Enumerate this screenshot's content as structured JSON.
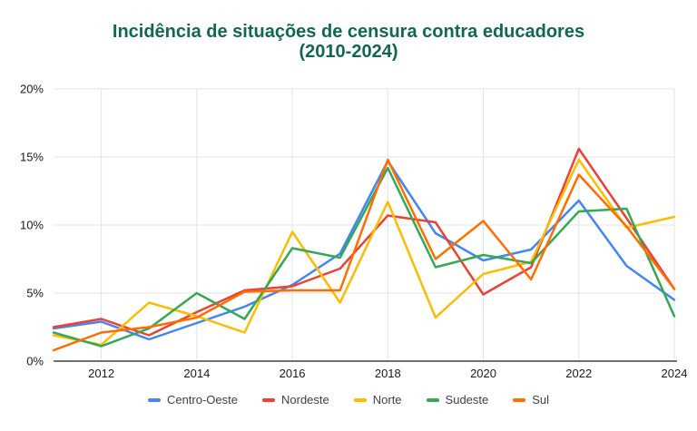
{
  "chart": {
    "title_line1": "Incidência de situações de censura contra educadores",
    "title_line2": "(2010-2024)",
    "title_color": "#116852"
  },
  "chart_data": {
    "type": "line",
    "x": [
      2011,
      2012,
      2013,
      2014,
      2015,
      2016,
      2017,
      2018,
      2019,
      2020,
      2021,
      2022,
      2023,
      2024
    ],
    "x_tick_labels": [
      "2012",
      "2014",
      "2016",
      "2018",
      "2020",
      "2022",
      "2024"
    ],
    "x_tick_years": [
      2012,
      2014,
      2016,
      2018,
      2020,
      2022,
      2024
    ],
    "y_tick_labels": [
      "0%",
      "5%",
      "10%",
      "15%",
      "20%"
    ],
    "y_tick_values": [
      0,
      5,
      10,
      15,
      20
    ],
    "ylim": [
      0,
      20
    ],
    "grid": true,
    "legend_position": "bottom",
    "series": [
      {
        "name": "Centro-Oeste",
        "color": "#4285F4",
        "values": [
          2.4,
          2.9,
          1.6,
          2.8,
          4.0,
          5.6,
          7.9,
          14.7,
          9.4,
          7.4,
          8.2,
          11.8,
          7.0,
          4.5
        ]
      },
      {
        "name": "Nordeste",
        "color": "#EA4335",
        "values": [
          2.5,
          3.1,
          1.9,
          3.6,
          5.2,
          5.5,
          6.8,
          10.7,
          10.2,
          4.9,
          6.9,
          15.6,
          10.5,
          5.3
        ]
      },
      {
        "name": "Norte",
        "color": "#FBBC04",
        "values": [
          1.9,
          1.2,
          4.3,
          3.3,
          2.1,
          9.5,
          4.3,
          11.7,
          3.2,
          6.4,
          7.3,
          14.8,
          9.8,
          10.6
        ]
      },
      {
        "name": "Sudeste",
        "color": "#34A853",
        "values": [
          2.1,
          1.1,
          2.4,
          5.0,
          3.1,
          8.3,
          7.6,
          14.2,
          6.9,
          7.8,
          7.2,
          11.0,
          11.2,
          3.3
        ]
      },
      {
        "name": "Sul",
        "color": "#FF6D01",
        "values": [
          0.8,
          2.1,
          2.5,
          3.2,
          5.1,
          5.2,
          5.2,
          14.8,
          7.5,
          10.3,
          6.0,
          13.7,
          9.9,
          5.3
        ]
      }
    ]
  }
}
